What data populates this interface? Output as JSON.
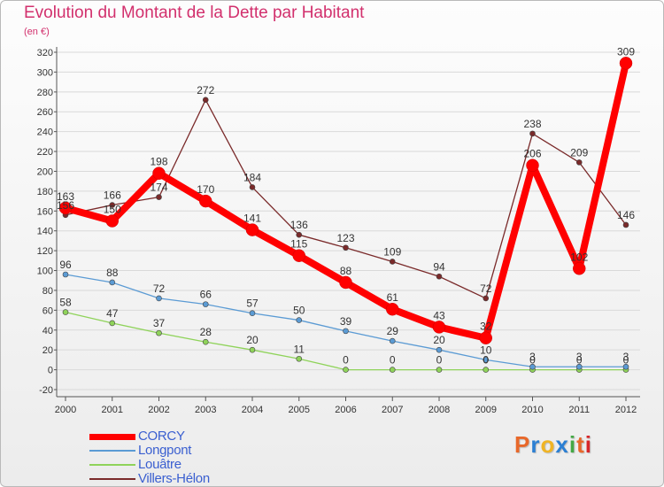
{
  "page": {
    "title": "Evolution du Montant de la Dette par Habitant",
    "subtitle": "(en €)",
    "brand": "Proxiti"
  },
  "colors": {
    "title": "#d2306d",
    "legend_text": "#3a5fd0",
    "brand_letters": [
      "#e8682a",
      "#2b7fd3",
      "#f0b424",
      "#2b7fd3",
      "#44a845",
      "#e8682a",
      "#d7262a"
    ]
  },
  "chart_data": {
    "type": "line",
    "title": "Evolution du Montant de la Dette par Habitant",
    "subtitle": "(en €)",
    "xlabel": "",
    "ylabel": "",
    "categories": [
      "2000",
      "2001",
      "2002",
      "2003",
      "2004",
      "2005",
      "2006",
      "2007",
      "2008",
      "2009",
      "2010",
      "2011",
      "2012"
    ],
    "ylim": [
      -20,
      320
    ],
    "yticks": [
      -20,
      0,
      20,
      40,
      60,
      80,
      100,
      120,
      140,
      160,
      180,
      200,
      220,
      240,
      260,
      280,
      300,
      320
    ],
    "grid": true,
    "legend": "bottom-left",
    "series": [
      {
        "name": "Louâtre",
        "color": "#8fd35a",
        "values": [
          58,
          47,
          37,
          28,
          20,
          11,
          0,
          0,
          0,
          0,
          0,
          0,
          0
        ]
      },
      {
        "name": "Longpont",
        "color": "#5b9bd4",
        "values": [
          96,
          88,
          72,
          66,
          57,
          50,
          39,
          29,
          20,
          10,
          3,
          3,
          3
        ]
      },
      {
        "name": "Villers-Hélon",
        "color": "#7a2a2a",
        "values": [
          156,
          166,
          174,
          272,
          184,
          136,
          123,
          109,
          94,
          72,
          238,
          209,
          146
        ]
      },
      {
        "name": "CORCY",
        "color": "#ff0000",
        "values": [
          163,
          150,
          198,
          170,
          141,
          115,
          88,
          61,
          43,
          32,
          206,
          102,
          309
        ]
      }
    ]
  },
  "legend": {
    "items": [
      {
        "label": "CORCY",
        "color": "#ff0000"
      },
      {
        "label": "Longpont",
        "color": "#5b9bd4"
      },
      {
        "label": "Louâtre",
        "color": "#8fd35a"
      },
      {
        "label": "Villers-Hélon",
        "color": "#7a2a2a"
      }
    ]
  }
}
